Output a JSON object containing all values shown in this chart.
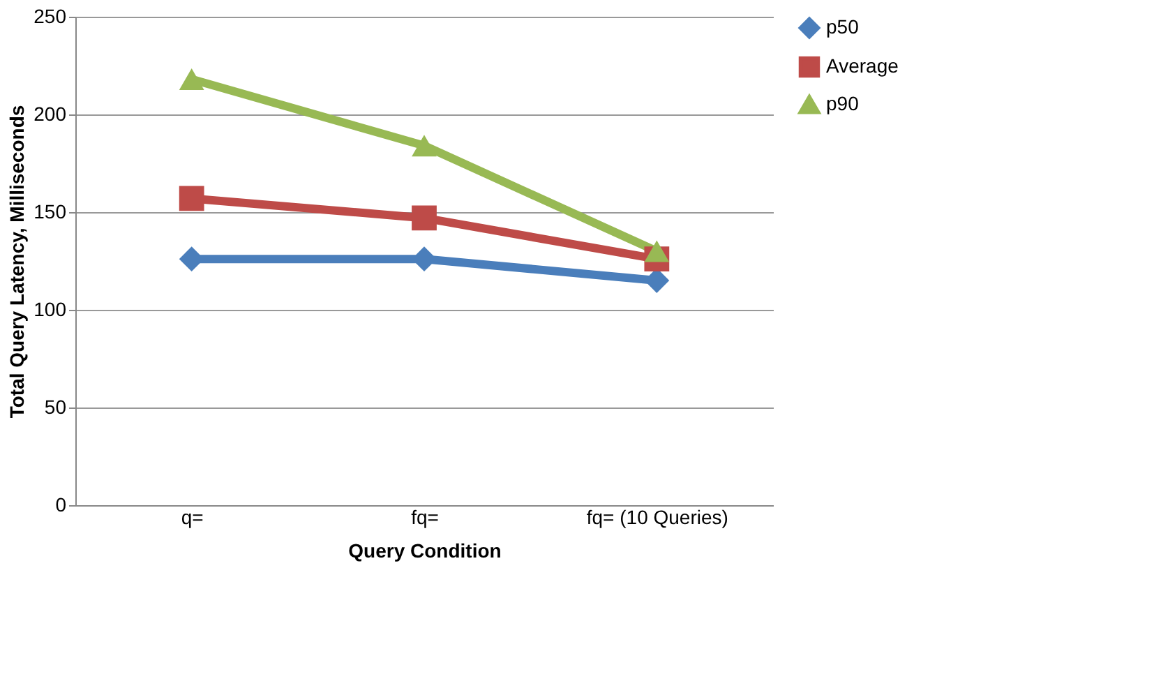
{
  "chart_data": {
    "type": "line",
    "xlabel": "Query Condition",
    "ylabel": "Total Query Latency, Milliseconds",
    "categories": [
      "q=",
      "fq=",
      "fq= (10 Queries)"
    ],
    "series": [
      {
        "name": "p50",
        "color": "#4a7ebb",
        "marker": "diamond",
        "values": [
          126,
          126,
          115
        ]
      },
      {
        "name": "Average",
        "color": "#be4b48",
        "marker": "square",
        "values": [
          157,
          147,
          126
        ]
      },
      {
        "name": "p90",
        "color": "#98b954",
        "marker": "triangle",
        "values": [
          218,
          184,
          130
        ]
      }
    ],
    "ylim": [
      0,
      250
    ],
    "yticks": [
      0,
      50,
      100,
      150,
      200,
      250
    ],
    "grid": "y",
    "legend": "right",
    "line_style": "solid"
  }
}
